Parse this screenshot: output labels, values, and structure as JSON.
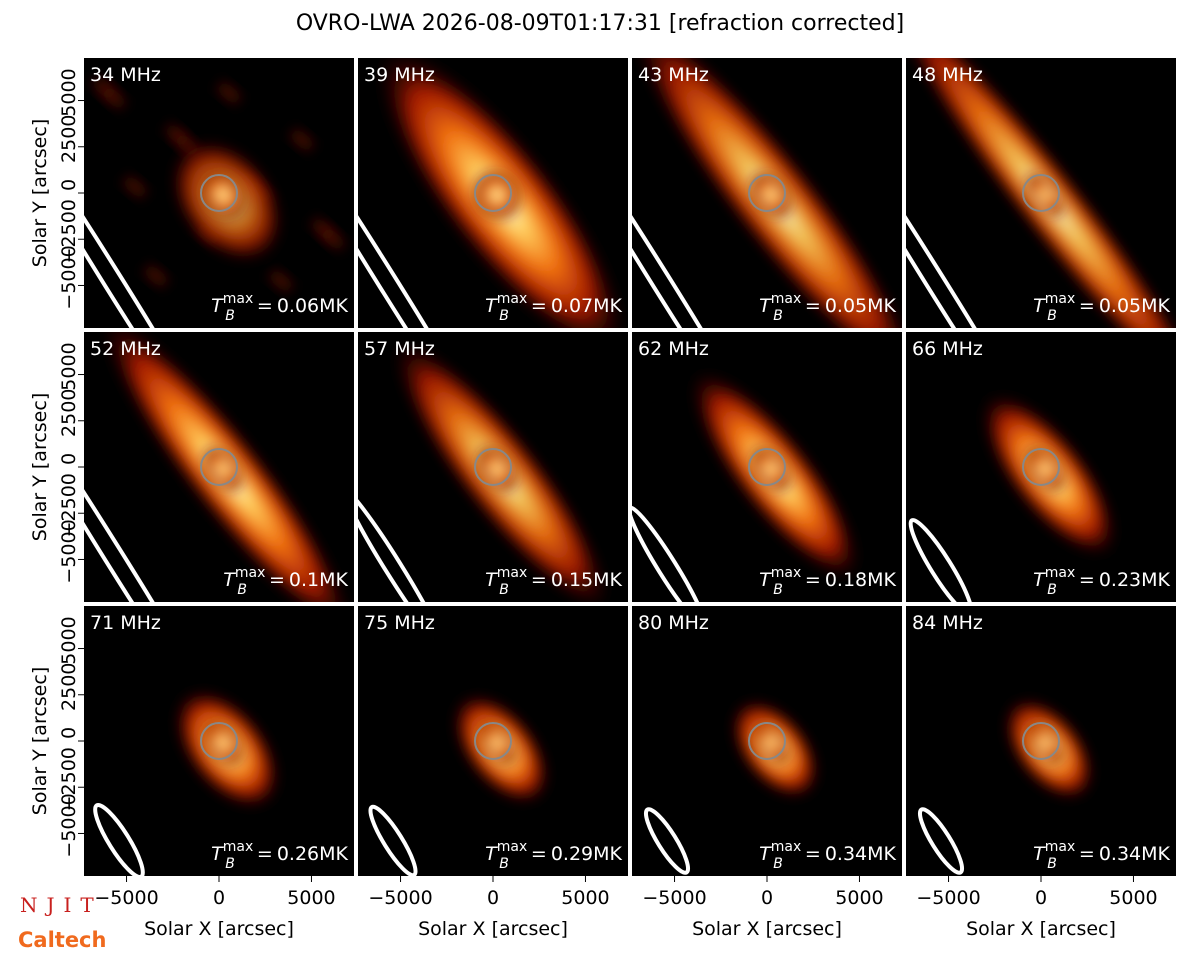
{
  "chart_data": {
    "type": "image",
    "title": "OVRO-LWA 2026-08-09T01:17:31 [refraction corrected]",
    "x_label": "Solar X [arcsec]",
    "y_label": "Solar Y [arcsec]",
    "xlim": [
      -7300,
      7300
    ],
    "ylim": [
      -7300,
      7300
    ],
    "xticks": [
      {
        "value": -5000,
        "label": "−5000"
      },
      0,
      5000
    ],
    "yticks": [
      {
        "value": -5000,
        "label": "−5000"
      },
      {
        "value": -2500,
        "label": "−2500"
      },
      0,
      2500,
      5000
    ],
    "tb_base": "T",
    "tb_sub": "B",
    "tb_sup": "max",
    "tb_eq": "=",
    "panels": [
      {
        "frequency": "34 MHz",
        "tb_max": "0.06MK"
      },
      {
        "frequency": "39 MHz",
        "tb_max": "0.07MK"
      },
      {
        "frequency": "43 MHz",
        "tb_max": "0.05MK"
      },
      {
        "frequency": "48 MHz",
        "tb_max": "0.05MK"
      },
      {
        "frequency": "52 MHz",
        "tb_max": "0.1MK"
      },
      {
        "frequency": "57 MHz",
        "tb_max": "0.15MK"
      },
      {
        "frequency": "62 MHz",
        "tb_max": "0.18MK"
      },
      {
        "frequency": "66 MHz",
        "tb_max": "0.23MK"
      },
      {
        "frequency": "71 MHz",
        "tb_max": "0.26MK"
      },
      {
        "frequency": "75 MHz",
        "tb_max": "0.29MK"
      },
      {
        "frequency": "80 MHz",
        "tb_max": "0.34MK"
      },
      {
        "frequency": "84 MHz",
        "tb_max": "0.34MK"
      }
    ],
    "logos": [
      "NJIT",
      "Caltech"
    ]
  }
}
